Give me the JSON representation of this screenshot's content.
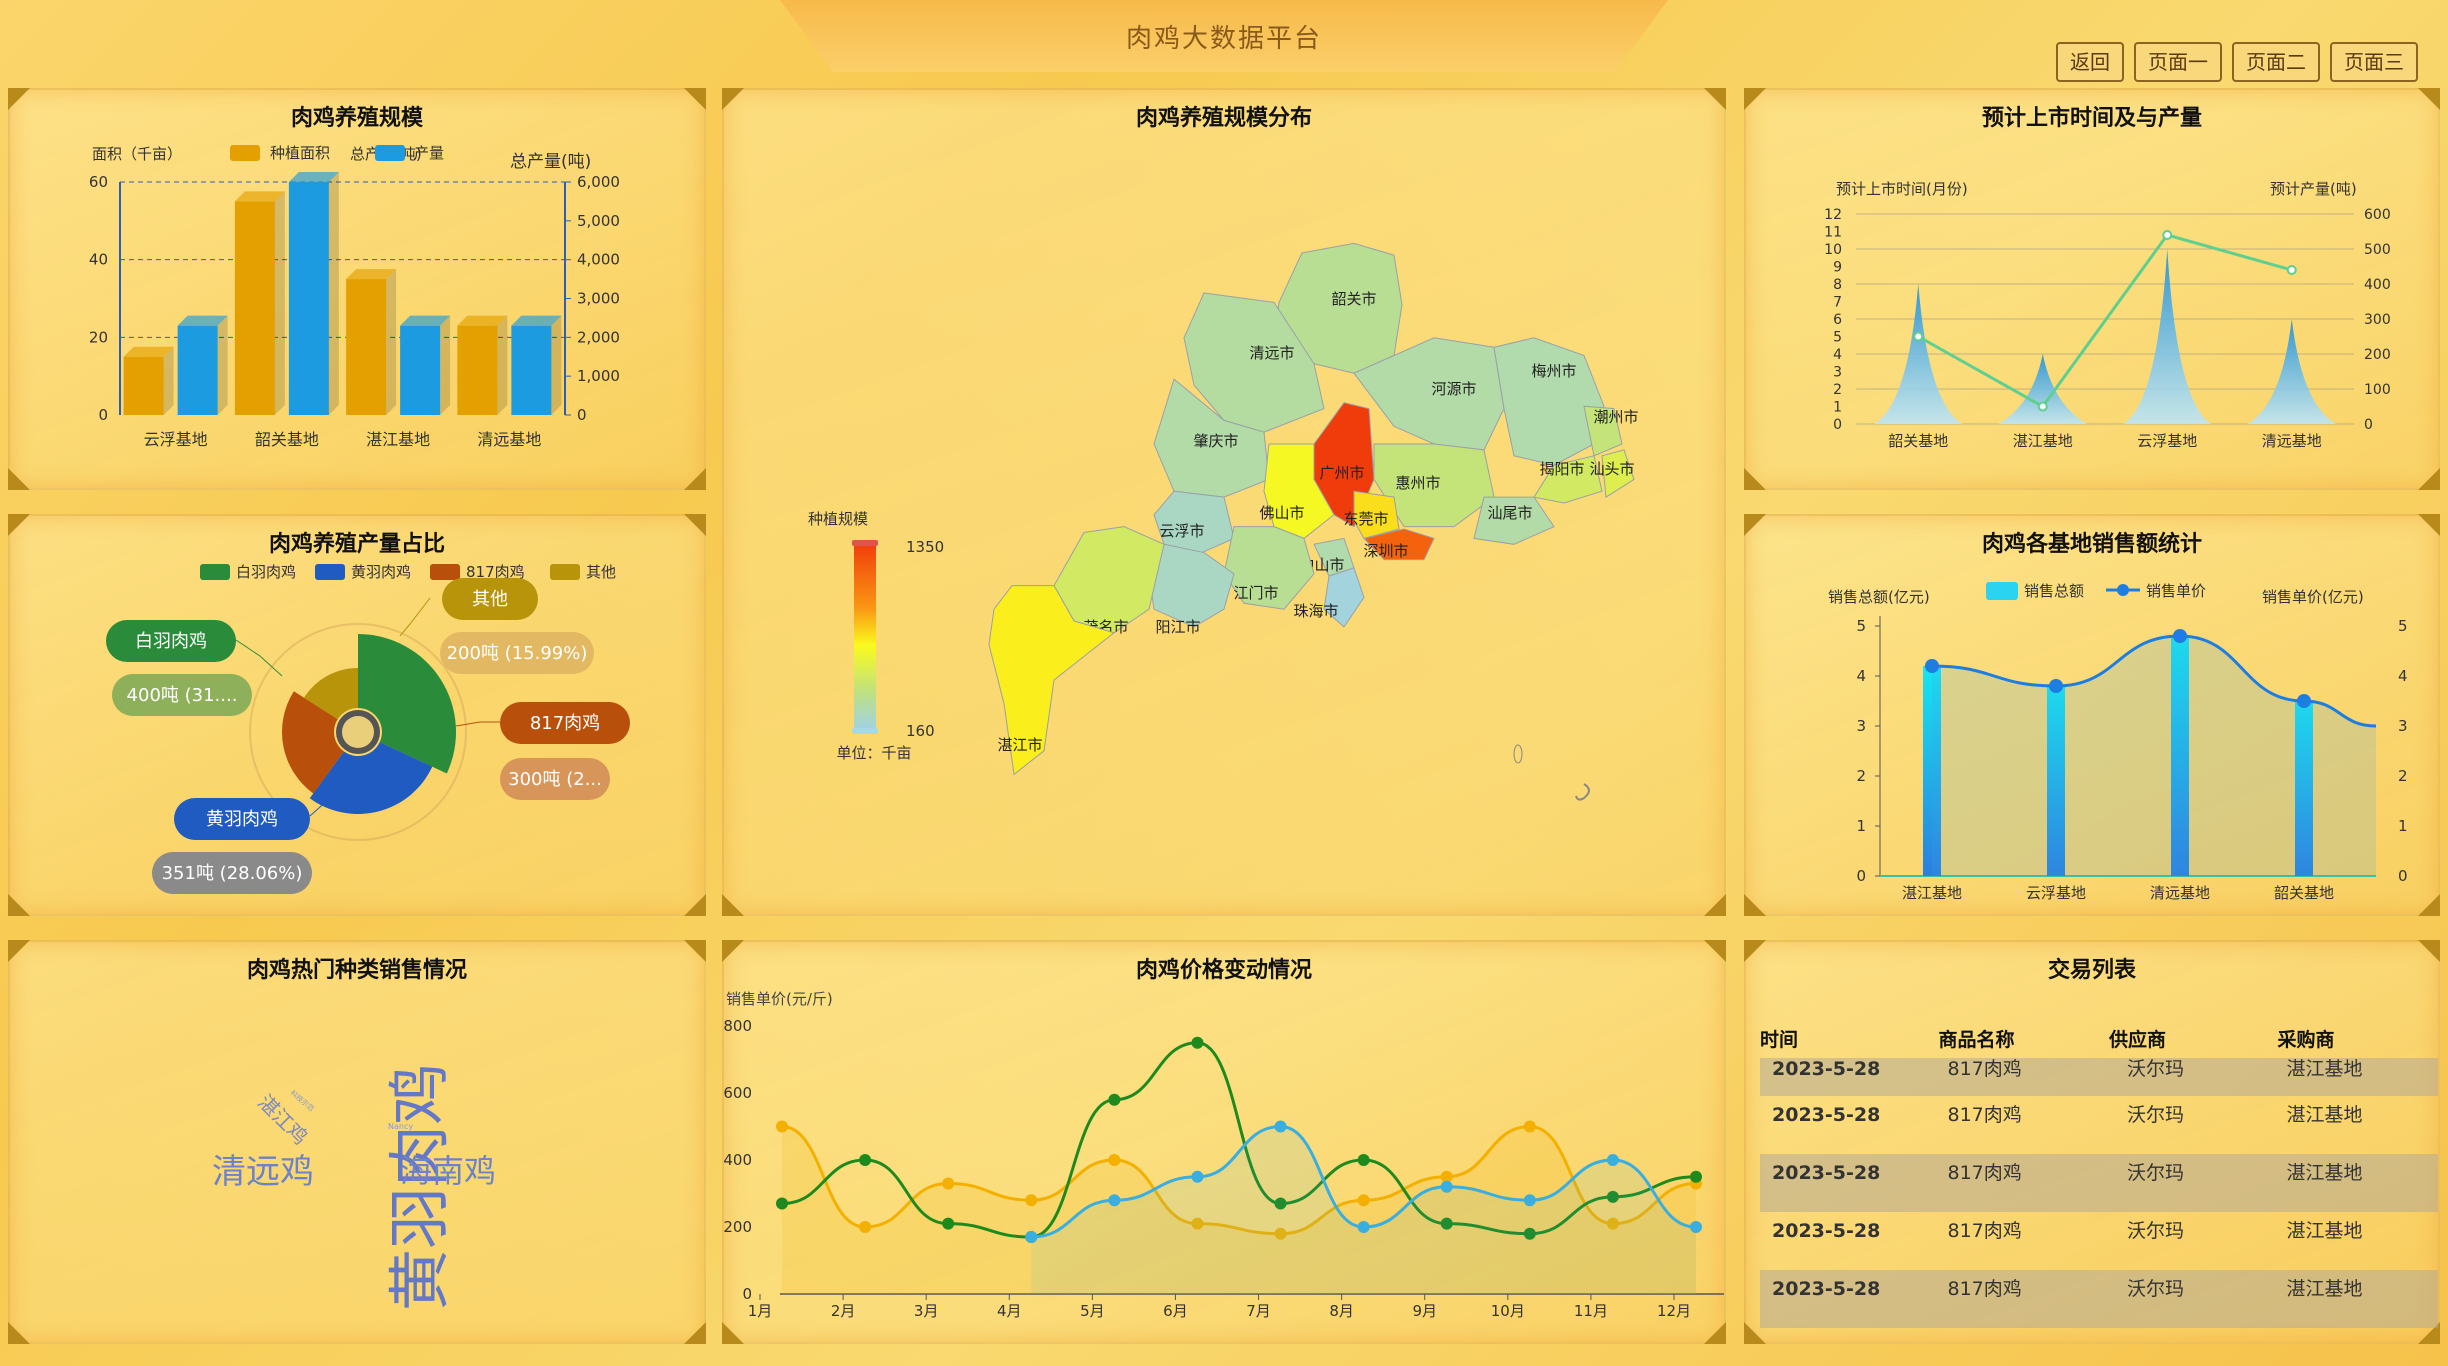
{
  "app": {
    "title": "肉鸡大数据平台"
  },
  "nav": {
    "back": "返回",
    "page1": "页面一",
    "page2": "页面二",
    "page3": "页面三"
  },
  "colors": {
    "gold": "#e3a000",
    "blue": "#1d9be0",
    "accent": "#b88a1c"
  },
  "panels": {
    "scale": "肉鸡养殖规模",
    "share": "肉鸡养殖产量占比",
    "hot": "肉鸡热门种类销售情况",
    "map": "肉鸡养殖规模分布",
    "price": "肉鸡价格变动情况",
    "forecast": "预计上市时间及与产量",
    "sales": "肉鸡各基地销售额统计",
    "trade": "交易列表"
  },
  "chart_data": [
    {
      "id": "scale",
      "type": "bar",
      "title": "肉鸡养殖规模",
      "categories": [
        "云浮基地",
        "韶关基地",
        "湛江基地",
        "清远基地"
      ],
      "ylabel": "面积（千亩）",
      "y2label": "总产量(吨)",
      "ylim": [
        0,
        60
      ],
      "y2lim": [
        0,
        6000
      ],
      "yticks": [
        "0",
        "20",
        "40",
        "60"
      ],
      "y2ticks": [
        "0",
        "1,000",
        "2,000",
        "3,000",
        "4,000",
        "5,000",
        "6,000"
      ],
      "series": [
        {
          "name": "种植面积",
          "values": [
            15,
            55,
            35,
            23
          ],
          "color": "#e3a000"
        },
        {
          "name": "产量",
          "values": [
            2300,
            6000,
            2300,
            2300
          ],
          "color": "#1d9be0"
        }
      ]
    },
    {
      "id": "share",
      "type": "pie",
      "legend": [
        "白羽肉鸡",
        "黄羽肉鸡",
        "817肉鸡",
        "其他"
      ],
      "slices": [
        {
          "name": "白羽肉鸡",
          "value": 400,
          "label": "400吨 (31....",
          "color": "#2a8c3a",
          "pct": 31.95
        },
        {
          "name": "黄羽肉鸡",
          "value": 351,
          "label": "351吨 (28.06%)",
          "color": "#1f5bc0",
          "pct": 28.06
        },
        {
          "name": "817肉鸡",
          "value": 300,
          "label": "300吨 (2...",
          "color": "#b8500c",
          "pct": 24.0
        },
        {
          "name": "其他",
          "value": 200,
          "label": "200吨 (15.99%)",
          "color": "#b8940a",
          "pct": 15.99
        }
      ]
    },
    {
      "id": "forecast",
      "type": "area",
      "categories": [
        "韶关基地",
        "湛江基地",
        "云浮基地",
        "清远基地"
      ],
      "ylabel": "预计上市时间(月份)",
      "y2label": "预计产量(吨)",
      "ylim": [
        0,
        12
      ],
      "y2lim": [
        0,
        600
      ],
      "yticks": [
        "0",
        "1",
        "2",
        "3",
        "4",
        "5",
        "6",
        "7",
        "8",
        "9",
        "10",
        "11",
        "12"
      ],
      "y2ticks": [
        "0",
        "100",
        "200",
        "300",
        "400",
        "500",
        "600"
      ],
      "series": [
        {
          "name": "预计上市时间",
          "values": [
            8,
            4,
            10,
            6
          ]
        },
        {
          "name": "预计产量",
          "values": [
            250,
            50,
            540,
            440
          ]
        }
      ]
    },
    {
      "id": "sales",
      "type": "bar",
      "categories": [
        "湛江基地",
        "云浮基地",
        "清远基地",
        "韶关基地"
      ],
      "legend": [
        "销售总额",
        "销售单价"
      ],
      "ylabel": "销售总额(亿元)",
      "y2label": "销售单价(亿元)",
      "ylim": [
        0,
        5
      ],
      "yticks": [
        "0",
        "1",
        "2",
        "3",
        "4",
        "5"
      ],
      "series": [
        {
          "name": "销售总额",
          "values": [
            4.2,
            3.8,
            4.8,
            3.5
          ]
        },
        {
          "name": "销售单价",
          "values": [
            4.2,
            3.8,
            4.8,
            3.5
          ]
        }
      ]
    },
    {
      "id": "price",
      "type": "line",
      "ylabel": "销售单价(元/斤)",
      "categories": [
        "1月",
        "2月",
        "3月",
        "4月",
        "5月",
        "6月",
        "7月",
        "8月",
        "9月",
        "10月",
        "11月",
        "12月"
      ],
      "ylim": [
        0,
        800
      ],
      "yticks": [
        "0",
        "200",
        "400",
        "600",
        "800"
      ],
      "series": [
        {
          "values": [
            500,
            200,
            330,
            280,
            400,
            210,
            180,
            280,
            350,
            500,
            210,
            330
          ],
          "color": "#f3b000"
        },
        {
          "values": [
            270,
            400,
            210,
            170,
            580,
            750,
            270,
            400,
            210,
            180,
            290,
            350
          ],
          "color": "#1e8a1e"
        },
        {
          "values": [
            null,
            null,
            null,
            170,
            280,
            350,
            500,
            200,
            320,
            280,
            400,
            200
          ],
          "color": "#39aee0"
        }
      ]
    },
    {
      "id": "map",
      "type": "heatmap",
      "visual_map": {
        "title": "种植规模",
        "max": "1350",
        "min": "160",
        "unit": "单位：千亩"
      },
      "regions": [
        {
          "name": "韶关市",
          "value": 500
        },
        {
          "name": "清远市",
          "value": 450
        },
        {
          "name": "河源市",
          "value": 420
        },
        {
          "name": "梅州市",
          "value": 400
        },
        {
          "name": "潮州市",
          "value": 600
        },
        {
          "name": "揭阳市",
          "value": 650
        },
        {
          "name": "汕头市",
          "value": 700
        },
        {
          "name": "肇庆市",
          "value": 420
        },
        {
          "name": "广州市",
          "value": 1350
        },
        {
          "name": "惠州市",
          "value": 600
        },
        {
          "name": "汕尾市",
          "value": 420
        },
        {
          "name": "佛山市",
          "value": 800
        },
        {
          "name": "东莞市",
          "value": 900
        },
        {
          "name": "深圳市",
          "value": 1250
        },
        {
          "name": "云浮市",
          "value": 300
        },
        {
          "name": "中山市",
          "value": 400
        },
        {
          "name": "江门市",
          "value": 500
        },
        {
          "name": "珠海市",
          "value": 200
        },
        {
          "name": "阳江市",
          "value": 300
        },
        {
          "name": "茂名市",
          "value": 650
        },
        {
          "name": "湛江市",
          "value": 850
        }
      ]
    }
  ],
  "wordcloud": [
    {
      "text": "黄羽肉鸡",
      "size": 62
    },
    {
      "text": "清远鸡",
      "size": 34
    },
    {
      "text": "海南鸡",
      "size": 32
    },
    {
      "text": "湛江鸡",
      "size": 20
    },
    {
      "text": "Nancy",
      "size": 8
    },
    {
      "text": "科技示范",
      "size": 7
    }
  ],
  "trade": {
    "headers": [
      "时间",
      "商品名称",
      "供应商",
      "采购商"
    ],
    "rows": [
      [
        "2023-5-28",
        "817肉鸡",
        "沃尔玛",
        "湛江基地"
      ],
      [
        "2023-5-28",
        "817肉鸡",
        "沃尔玛",
        "湛江基地"
      ],
      [
        "2023-5-28",
        "817肉鸡",
        "沃尔玛",
        "湛江基地"
      ],
      [
        "2023-5-28",
        "817肉鸡",
        "沃尔玛",
        "湛江基地"
      ],
      [
        "2023-5-28",
        "817肉鸡",
        "沃尔玛",
        "湛江基地"
      ]
    ]
  }
}
